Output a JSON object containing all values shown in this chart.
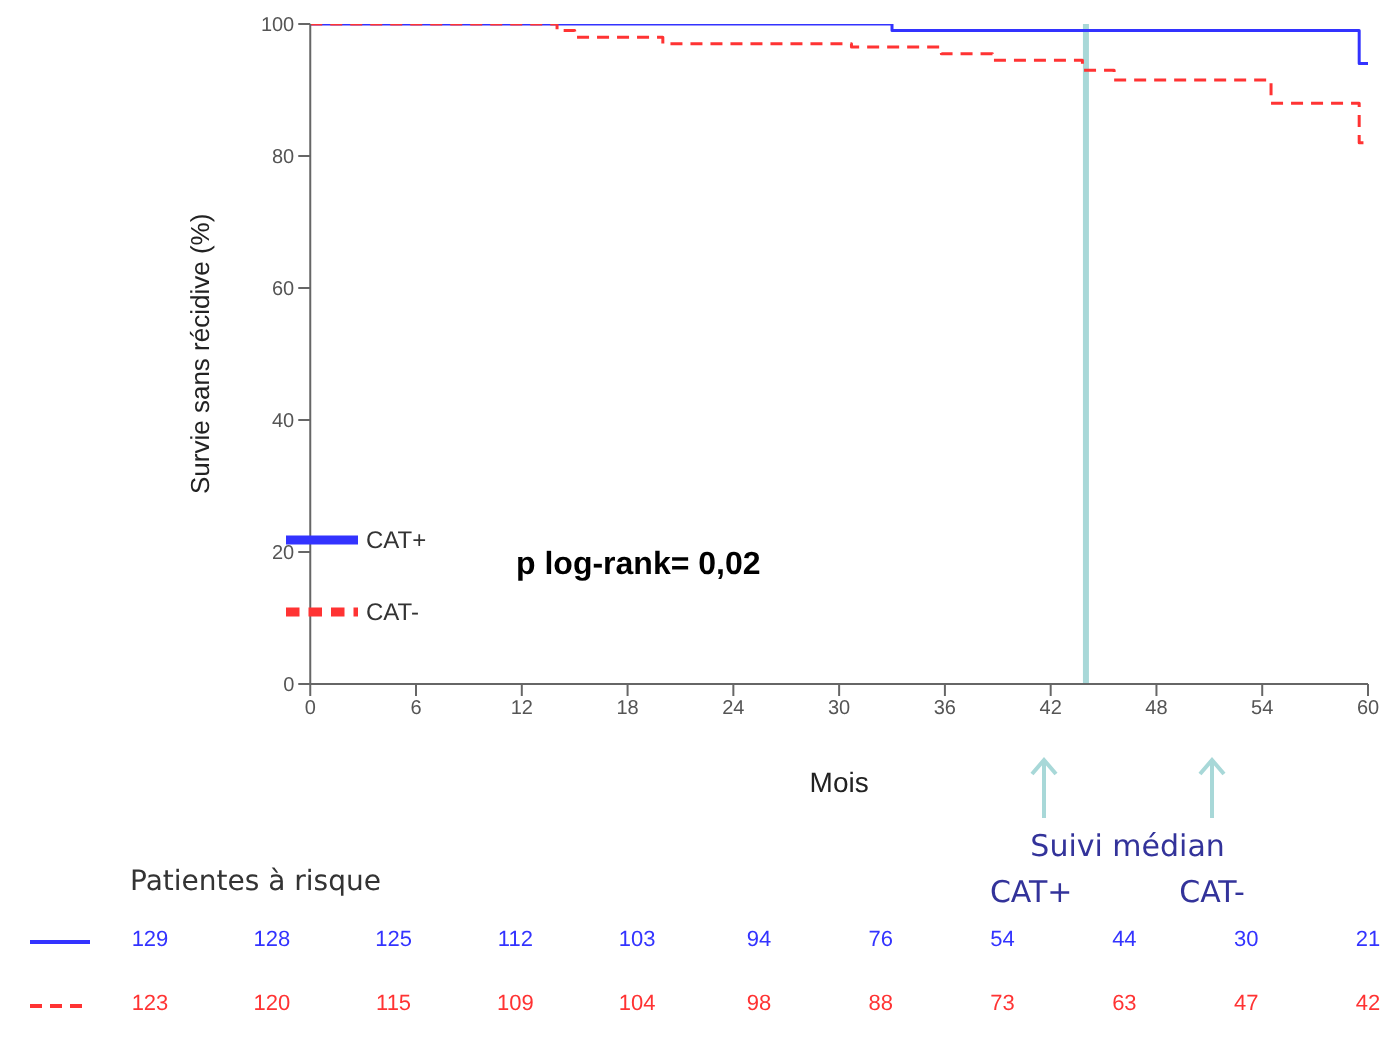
{
  "chart_data": {
    "type": "step",
    "xlabel": "Mois",
    "ylabel": "Survie sans récidive (%)",
    "xlim": [
      0,
      60
    ],
    "xticks": [
      0,
      6,
      12,
      18,
      24,
      30,
      36,
      42,
      48,
      54,
      60
    ],
    "ylim": [
      0,
      100
    ],
    "yticks": [
      0,
      20,
      40,
      60,
      80,
      100
    ],
    "legend": "bottom left",
    "marker": "none",
    "series": [
      {
        "name": "CAT+",
        "color": "#3333ff",
        "line_style": "solid",
        "x": [
          0,
          33,
          59.5,
          60
        ],
        "values": [
          100,
          99,
          94,
          94
        ]
      },
      {
        "name": "CAT-",
        "color": "#ff3333",
        "line_style": "dashed",
        "x": [
          0,
          14,
          15,
          20,
          30.7,
          35.8,
          38.7,
          43.8,
          45.6,
          54.5,
          59.5,
          60
        ],
        "values": [
          100,
          99,
          98,
          97,
          96.5,
          95.5,
          94.5,
          93,
          91.5,
          88,
          82,
          82
        ]
      }
    ],
    "ref_lines": [
      {
        "axis": "x",
        "value": 44,
        "color": "#a8d8d8"
      }
    ],
    "annotations": [
      "p log-rank= 0,02",
      "Suivi médian",
      "CAT+",
      "CAT-",
      "Patientes à risque",
      "129",
      "128",
      "125",
      "112",
      "103",
      "94",
      "76",
      "54",
      "44",
      "30",
      "21",
      "123",
      "120",
      "115",
      "109",
      "104",
      "98",
      "88",
      "73",
      "63",
      "47",
      "42"
    ]
  }
}
